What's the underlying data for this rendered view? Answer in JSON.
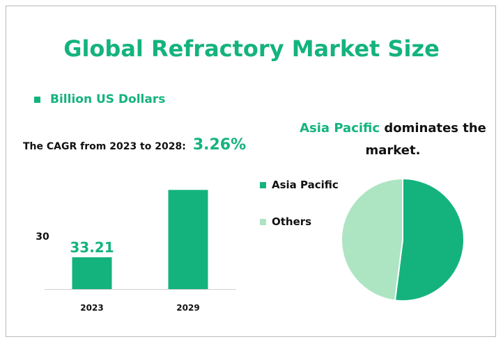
{
  "title": "Global Refractory Market Size",
  "legend_top": {
    "label": "Billion US Dollars",
    "color": "#14b37d"
  },
  "cagr": {
    "label": "The CAGR from 2023 to 2028:",
    "value": "3.26%"
  },
  "y_axis_label": "30",
  "pie_heading": {
    "highlight": "Asia Pacific",
    "rest": "dominates the market."
  },
  "colors": {
    "accent": "#14b37d",
    "light": "#ade5c2"
  },
  "chart_data": [
    {
      "type": "bar",
      "categories": [
        "2023",
        "2029"
      ],
      "values": [
        33.21,
        40.0
      ],
      "data_labels": [
        "33.21",
        ""
      ],
      "ylim": [
        30,
        41
      ],
      "color": "#14b37d"
    },
    {
      "type": "pie",
      "labels": [
        "Asia Pacific",
        "Others"
      ],
      "values": [
        52,
        48
      ],
      "colors": [
        "#14b37d",
        "#ade5c2"
      ],
      "legend_position": "left"
    }
  ]
}
